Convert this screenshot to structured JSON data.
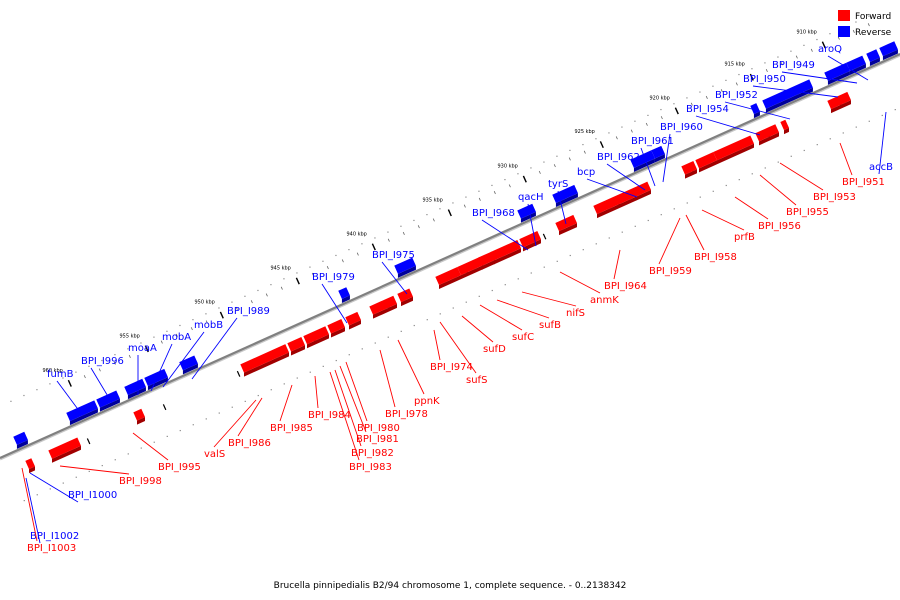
{
  "caption": "Brucella pinnipedialis B2/94 chromosome 1, complete sequence. - 0..2138342",
  "colors": {
    "forward": "#ff0000",
    "reverse": "#0000ff",
    "backbone": "#808080"
  },
  "legend": [
    {
      "label": "Forward",
      "color": "#ff0000"
    },
    {
      "label": "Reverse",
      "color": "#0000ff"
    }
  ],
  "ticks": [
    "910 kbp",
    "915 kbp",
    "920 kbp",
    "925 kbp",
    "930 kbp",
    "935 kbp",
    "940 kbp",
    "945 kbp",
    "950 kbp",
    "955 kbp",
    "960 kbp"
  ],
  "reverse_genes": [
    "aroQ",
    "BPI_I949",
    "BPI_I950",
    "BPI_I952",
    "BPI_I954",
    "BPI_I960",
    "BPI_I961",
    "BPI_I962",
    "bcp",
    "tyrS",
    "qacH",
    "BPI_I968",
    "BPI_I975",
    "BPI_I979",
    "BPI_I989",
    "mobB",
    "mobA",
    "moaA",
    "BPI_I996",
    "fumB",
    "BPI_I1000",
    "BPI_I1002",
    "accB"
  ],
  "forward_genes": [
    "BPI_I951",
    "BPI_I953",
    "BPI_I955",
    "BPI_I956",
    "prfB",
    "BPI_I958",
    "BPI_I959",
    "BPI_I964",
    "anmK",
    "nifS",
    "sufB",
    "sufC",
    "sufD",
    "sufS",
    "BPI_I974",
    "ppnK",
    "BPI_I978",
    "BPI_I980",
    "BPI_I981",
    "BPI_I982",
    "BPI_I983",
    "BPI_I984",
    "BPI_I985",
    "BPI_I986",
    "valS",
    "BPI_I995",
    "BPI_I998",
    "BPI_I1003"
  ]
}
